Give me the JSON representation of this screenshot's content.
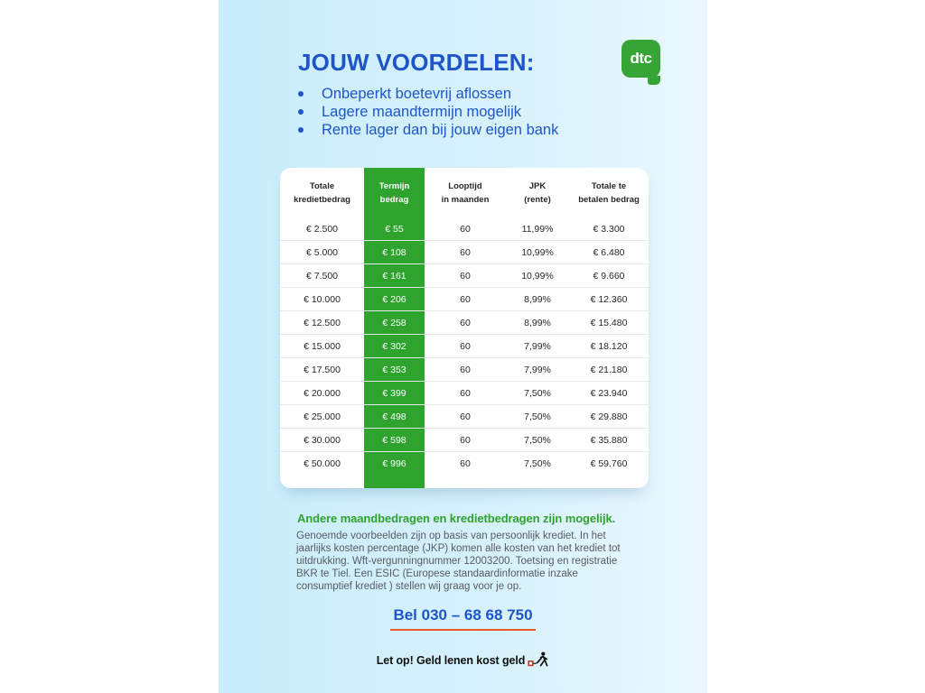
{
  "brand": {
    "logo_text": "dtc"
  },
  "header": {
    "title": "JOUW VOORDELEN:",
    "benefits": [
      "Onbeperkt boetevrij aflossen",
      "Lagere maandtermijn mogelijk",
      "Rente lager dan bij jouw eigen bank"
    ]
  },
  "table": {
    "headers": [
      "Totale\nkredietbedrag",
      "Termijn\nbedrag",
      "Looptijd\nin maanden",
      "JPK\n(rente)",
      "Totale te\nbetalen bedrag"
    ],
    "rows": [
      [
        "€ 2.500",
        "€ 55",
        "60",
        "11,99%",
        "€ 3.300"
      ],
      [
        "€ 5.000",
        "€ 108",
        "60",
        "10,99%",
        "€ 6.480"
      ],
      [
        "€ 7.500",
        "€ 161",
        "60",
        "10,99%",
        "€ 9.660"
      ],
      [
        "€ 10.000",
        "€ 206",
        "60",
        "8,99%",
        "€ 12.360"
      ],
      [
        "€ 12.500",
        "€ 258",
        "60",
        "8,99%",
        "€ 15.480"
      ],
      [
        "€ 15.000",
        "€ 302",
        "60",
        "7,99%",
        "€ 18.120"
      ],
      [
        "€ 17.500",
        "€ 353",
        "60",
        "7,99%",
        "€ 21.180"
      ],
      [
        "€ 20.000",
        "€ 399",
        "60",
        "7,50%",
        "€ 23.940"
      ],
      [
        "€ 25.000",
        "€ 498",
        "60",
        "7,50%",
        "€ 29.880"
      ],
      [
        "€ 30.000",
        "€ 598",
        "60",
        "7,50%",
        "€ 35.880"
      ],
      [
        "€ 50.000",
        "€ 996",
        "60",
        "7,50%",
        "€ 59.760"
      ]
    ]
  },
  "footer": {
    "highlight": "Andere maandbedragen en kredietbedragen zijn mogelijk.",
    "disclaimer": "Genoemde voorbeelden zijn op basis van persoonlijk krediet. In het jaarlijks kosten percentage (JKP) komen alle kosten van het krediet tot uitdrukking. Wft-vergunningnummer 12003200. Toetsing en registratie BKR te Tiel. Een ESIC (Europese standaardinformatie inzake consumptief krediet ) stellen wij graag voor je op.",
    "phone_label": "Bel 030 – 68 68 750",
    "warning": "Let op! Geld lenen kost geld"
  },
  "colors": {
    "accent_blue": "#1e55c8",
    "accent_green": "#2ea32e",
    "underline_orange": "#e85c21",
    "panel_blue": "#cbeefb"
  }
}
